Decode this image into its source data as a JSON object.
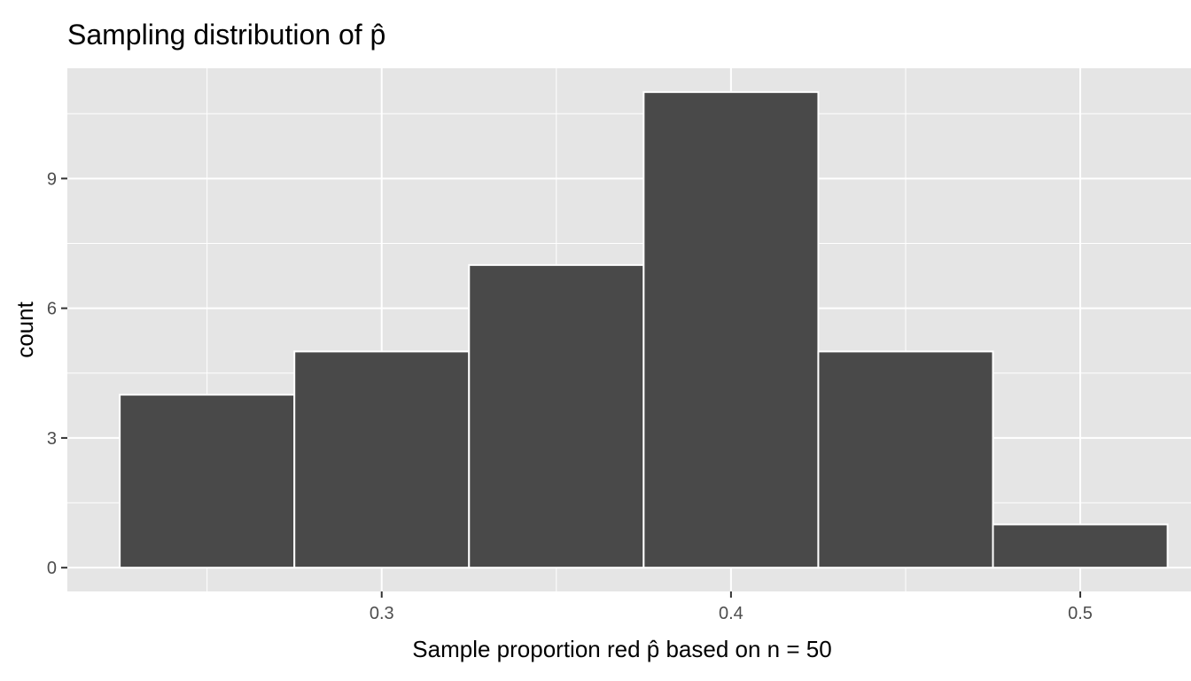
{
  "chart_data": {
    "type": "bar",
    "title": "Sampling distribution of p̂",
    "xlabel": "Sample proportion red p̂ based on n = 50",
    "ylabel": "count",
    "bins": [
      {
        "x_min": 0.225,
        "x_max": 0.275,
        "count": 4
      },
      {
        "x_min": 0.275,
        "x_max": 0.325,
        "count": 5
      },
      {
        "x_min": 0.325,
        "x_max": 0.375,
        "count": 7
      },
      {
        "x_min": 0.375,
        "x_max": 0.425,
        "count": 11
      },
      {
        "x_min": 0.425,
        "x_max": 0.475,
        "count": 5
      },
      {
        "x_min": 0.475,
        "x_max": 0.525,
        "count": 1
      }
    ],
    "xlim": [
      0.21,
      0.535
    ],
    "ylim": [
      -0.55,
      11.55
    ],
    "x_ticks": [
      0.3,
      0.4,
      0.5
    ],
    "x_tick_labels": [
      "0.3",
      "0.4",
      "0.5"
    ],
    "x_minor_ticks": [
      0.25,
      0.35,
      0.45
    ],
    "y_ticks": [
      0,
      3,
      6,
      9
    ],
    "y_tick_labels": [
      "0",
      "3",
      "6",
      "9"
    ],
    "y_minor_ticks": [
      1.5,
      4.5,
      7.5,
      10.5
    ],
    "grid": true,
    "colors": {
      "bar_fill": "#494949",
      "bar_outline": "#ffffff",
      "panel_background": "#e5e5e5",
      "grid": "#ffffff"
    }
  }
}
